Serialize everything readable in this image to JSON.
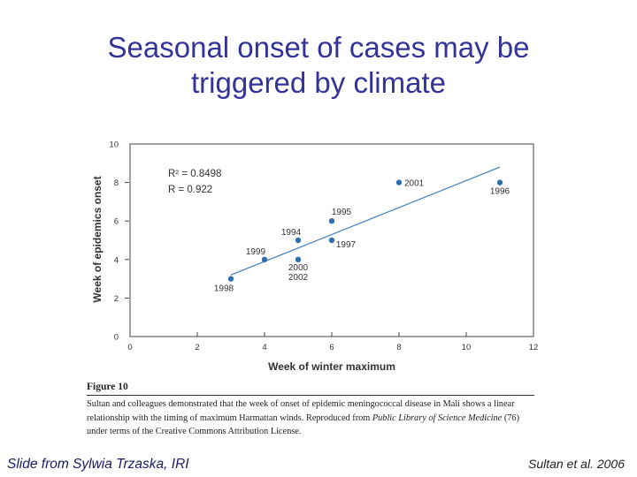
{
  "title": {
    "line1": "Seasonal onset of cases may be",
    "line2": "triggered by climate"
  },
  "chart_data": {
    "type": "scatter",
    "title": "",
    "xlabel": "Week of winter maximum",
    "ylabel": "Week of epidemics onset",
    "xlim": [
      0,
      12
    ],
    "ylim": [
      0,
      10
    ],
    "xticks": [
      0,
      2,
      4,
      6,
      8,
      10,
      12
    ],
    "yticks": [
      0,
      2,
      4,
      6,
      8,
      10
    ],
    "grid": false,
    "annotations": [
      "R² = 0.8498",
      "R  = 0.922"
    ],
    "points": [
      {
        "x": 3,
        "y": 3,
        "label": "1998"
      },
      {
        "x": 4,
        "y": 4,
        "label": "1999"
      },
      {
        "x": 5,
        "y": 5,
        "label": "1994"
      },
      {
        "x": 5,
        "y": 4,
        "label": "2000\n2002"
      },
      {
        "x": 6,
        "y": 6,
        "label": "1995"
      },
      {
        "x": 6,
        "y": 5,
        "label": "1997"
      },
      {
        "x": 8,
        "y": 8,
        "label": "2001"
      },
      {
        "x": 11,
        "y": 8,
        "label": "1996"
      }
    ],
    "trendline": {
      "x": [
        3,
        11
      ],
      "y": [
        3.2,
        8.8
      ]
    },
    "colors": {
      "points": "#2f6fae",
      "trendline": "#4f86c0",
      "axes": "#444444"
    }
  },
  "figure": {
    "label": "Figure 10",
    "caption_part1": "Sultan and colleagues demonstrated that the week of onset of epidemic meningococcal disease in Mali shows a linear relationship with the timing of maximum Harmattan winds. Reproduced from ",
    "caption_journal": "Public Library of Science Medicine",
    "caption_part2": " (76) under terms of the Creative Commons Attribution License."
  },
  "footer": {
    "left": "Slide from Sylwia Trzaska, IRI",
    "right": "Sultan et al. 2006"
  }
}
